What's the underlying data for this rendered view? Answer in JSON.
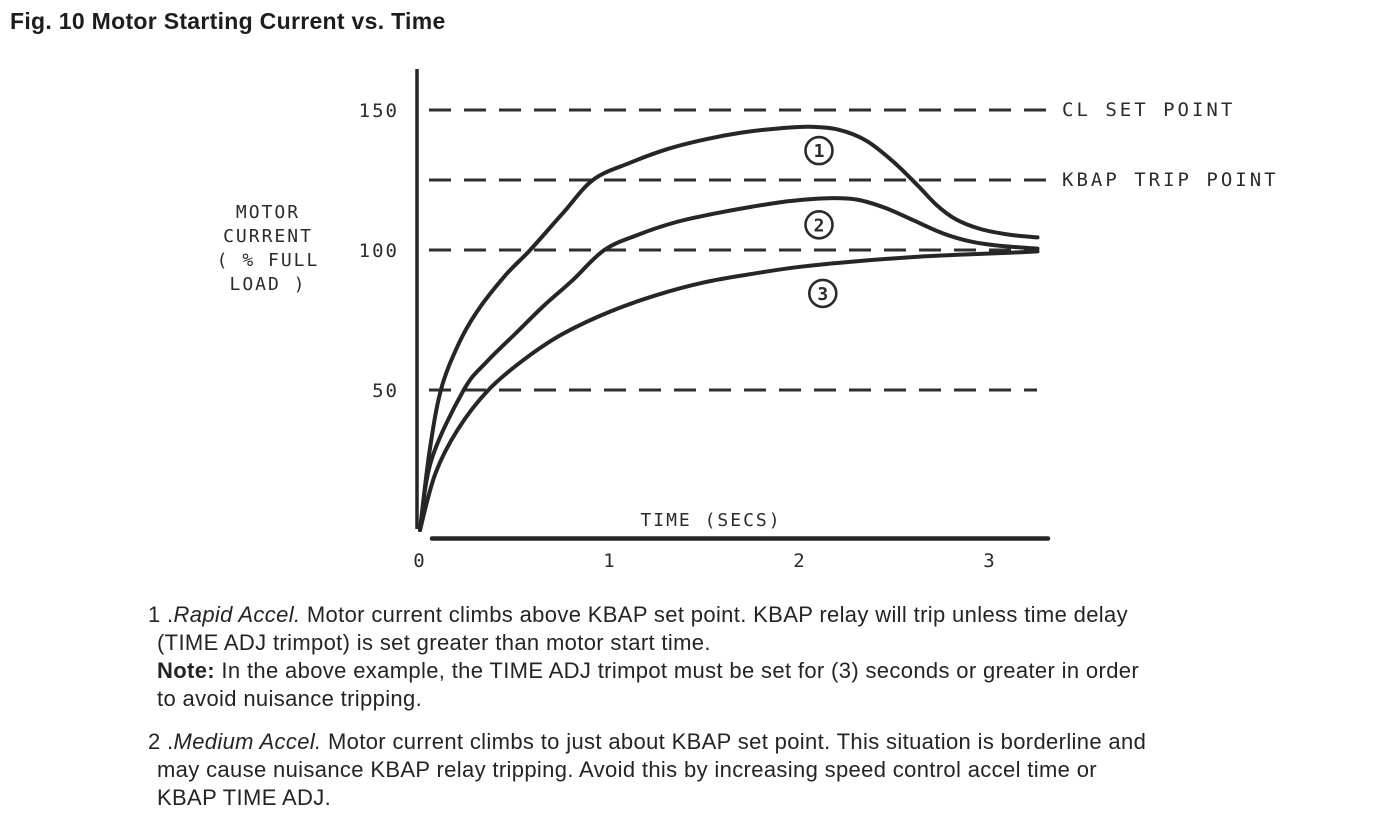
{
  "figure_title": "Fig. 10 Motor Starting Current vs. Time",
  "chart_data": {
    "type": "line",
    "title": "Motor Starting Current vs. Time",
    "xlabel": "TIME (SECS)",
    "ylabel": "MOTOR CURRENT ( % FULL LOAD )",
    "ylabel_lines": [
      "MOTOR",
      "CURRENT",
      "( % FULL",
      "LOAD )"
    ],
    "xlim": [
      0,
      3.3
    ],
    "ylim": [
      0,
      160
    ],
    "x_ticks": [
      0,
      1,
      2,
      3
    ],
    "y_ticks": [
      150,
      100,
      50
    ],
    "grid": false,
    "legend_position": "none",
    "reference_lines": [
      {
        "value": 150,
        "label": "CL SET POINT"
      },
      {
        "value": 125,
        "label": "KBAP TRIP POINT"
      },
      {
        "value": 100,
        "label": ""
      },
      {
        "value": 50,
        "label": ""
      }
    ],
    "series": [
      {
        "name": "1",
        "points": [
          [
            0,
            0
          ],
          [
            0.05,
            28
          ],
          [
            0.11,
            50
          ],
          [
            0.2,
            66
          ],
          [
            0.3,
            78
          ],
          [
            0.45,
            91
          ],
          [
            0.58,
            100
          ],
          [
            0.75,
            113
          ],
          [
            0.91,
            125
          ],
          [
            1.1,
            131
          ],
          [
            1.3,
            136
          ],
          [
            1.5,
            139.5
          ],
          [
            1.7,
            142
          ],
          [
            1.9,
            143.5
          ],
          [
            2.05,
            144
          ],
          [
            2.2,
            143
          ],
          [
            2.35,
            139
          ],
          [
            2.5,
            131
          ],
          [
            2.62,
            123
          ],
          [
            2.72,
            116
          ],
          [
            2.82,
            111
          ],
          [
            2.95,
            107.5
          ],
          [
            3.1,
            105.5
          ],
          [
            3.25,
            104.5
          ]
        ]
      },
      {
        "name": "2",
        "points": [
          [
            0,
            0
          ],
          [
            0.06,
            25
          ],
          [
            0.23,
            50
          ],
          [
            0.35,
            60
          ],
          [
            0.5,
            70
          ],
          [
            0.65,
            80
          ],
          [
            0.8,
            89
          ],
          [
            0.97,
            100
          ],
          [
            1.15,
            105.5
          ],
          [
            1.35,
            110
          ],
          [
            1.55,
            113
          ],
          [
            1.75,
            115.5
          ],
          [
            1.95,
            117.5
          ],
          [
            2.15,
            118.5
          ],
          [
            2.3,
            118
          ],
          [
            2.45,
            115
          ],
          [
            2.6,
            110.5
          ],
          [
            2.75,
            106
          ],
          [
            2.9,
            103
          ],
          [
            3.05,
            101.5
          ],
          [
            3.25,
            100.5
          ]
        ]
      },
      {
        "name": "3",
        "points": [
          [
            0,
            0
          ],
          [
            0.08,
            20
          ],
          [
            0.2,
            36
          ],
          [
            0.36,
            50
          ],
          [
            0.55,
            61
          ],
          [
            0.75,
            70
          ],
          [
            1.0,
            78
          ],
          [
            1.25,
            84
          ],
          [
            1.5,
            88.5
          ],
          [
            1.75,
            91.5
          ],
          [
            2.0,
            94
          ],
          [
            2.3,
            96
          ],
          [
            2.6,
            97.5
          ],
          [
            2.9,
            98.5
          ],
          [
            3.1,
            99
          ],
          [
            3.25,
            99.5
          ]
        ]
      }
    ],
    "curve_markers": [
      {
        "label": "1",
        "t": 2.1,
        "value": 135.5
      },
      {
        "label": "2",
        "t": 2.1,
        "value": 109
      },
      {
        "label": "3",
        "t": 2.12,
        "value": 84.5
      }
    ]
  },
  "notes": [
    {
      "marker": "1 .",
      "lead_italic": "Rapid Accel.",
      "line1_rest": " Motor current climbs above KBAP set point. KBAP relay will trip unless time delay",
      "line2": "(TIME ADJ trimpot) is set greater than motor start time.",
      "note_label": "Note:",
      "note_line1": " In the above example, the TIME ADJ trimpot must be set for (3) seconds or greater in order",
      "note_line2": "to avoid nuisance tripping."
    },
    {
      "marker": "2 .",
      "lead_italic": "Medium Accel.",
      "line1_rest": " Motor current climbs to just about KBAP set point. This situation is borderline and",
      "line2": "may cause nuisance KBAP relay tripping. Avoid this by increasing speed control accel time or",
      "line3": "KBAP TIME ADJ."
    }
  ]
}
